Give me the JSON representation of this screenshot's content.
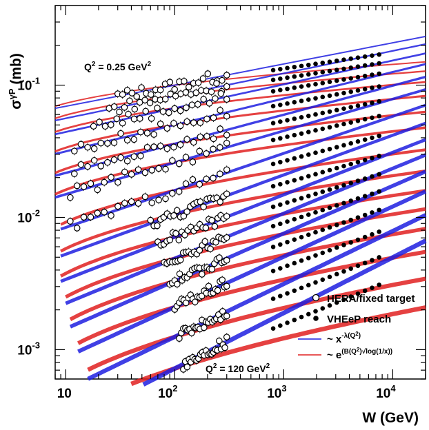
{
  "chart_data": {
    "type": "scatter",
    "xscale": "log",
    "yscale": "log",
    "xlim": [
      8,
      20000
    ],
    "ylim": [
      0.0006,
      0.4
    ],
    "xlabel": "W (GeV)",
    "ylabel": "σ^γP (mb)",
    "x_ticks": [
      "10",
      "10^2",
      "10^3",
      "10^4"
    ],
    "y_ticks": [
      "10^-3",
      "10^-2",
      "10^-1"
    ],
    "annotations": {
      "top": "Q^2 = 0.25 GeV^2",
      "bottom": "Q^2 = 120 GeV^2"
    },
    "legend": {
      "position": "bottom-right",
      "entries": [
        {
          "label": "HERA/fixed target",
          "marker": "open-circle"
        },
        {
          "label": "VHEeP reach",
          "marker": "filled-circle"
        },
        {
          "label": "~ x^-λ(Q^2)",
          "color": "#1f1fe0",
          "style": "line"
        },
        {
          "label": "~ e^(B(Q^2)√log(1/x))",
          "color": "#e02020",
          "style": "line"
        }
      ]
    },
    "curve_colors": {
      "power_law": "#1f1fe0",
      "exponential": "#e02020"
    },
    "series": [
      {
        "w_start": 8,
        "sigma_at_100": 0.1,
        "slope": 0.16,
        "hera_w": [
          30,
          300
        ],
        "vheep_w": [
          800,
          7500
        ]
      },
      {
        "w_start": 8,
        "sigma_at_100": 0.083,
        "slope": 0.17,
        "hera_w": [
          25,
          300
        ],
        "vheep_w": [
          800,
          7500
        ]
      },
      {
        "w_start": 8,
        "sigma_at_100": 0.067,
        "slope": 0.18,
        "hera_w": [
          18,
          300
        ],
        "vheep_w": [
          800,
          7500
        ]
      },
      {
        "w_start": 8,
        "sigma_at_100": 0.05,
        "slope": 0.2,
        "hera_w": [
          12,
          300
        ],
        "vheep_w": [
          800,
          7500
        ]
      },
      {
        "w_start": 8,
        "sigma_at_100": 0.036,
        "slope": 0.22,
        "hera_w": [
          12,
          300
        ],
        "vheep_w": [
          800,
          7500
        ]
      },
      {
        "w_start": 8,
        "sigma_at_100": 0.026,
        "slope": 0.24,
        "hera_w": [
          11,
          300
        ],
        "vheep_w": [
          800,
          7500
        ]
      },
      {
        "w_start": 9,
        "sigma_at_100": 0.016,
        "slope": 0.28,
        "hera_w": [
          11,
          300
        ],
        "vheep_w": [
          800,
          7500
        ]
      },
      {
        "w_start": 9,
        "sigma_at_100": 0.0105,
        "slope": 0.3,
        "hera_w": [
          60,
          300
        ],
        "vheep_w": [
          800,
          7500
        ]
      },
      {
        "w_start": 9,
        "sigma_at_100": 0.0071,
        "slope": 0.32,
        "hera_w": [
          70,
          300
        ],
        "vheep_w": [
          800,
          7500
        ]
      },
      {
        "w_start": 10,
        "sigma_at_100": 0.0049,
        "slope": 0.34,
        "hera_w": [
          80,
          300
        ],
        "vheep_w": [
          800,
          7500
        ]
      },
      {
        "w_start": 11,
        "sigma_at_100": 0.0033,
        "slope": 0.36,
        "hera_w": [
          90,
          300
        ],
        "vheep_w": [
          800,
          7500
        ]
      },
      {
        "w_start": 13,
        "sigma_at_100": 0.0021,
        "slope": 0.38,
        "hera_w": [
          100,
          300
        ],
        "vheep_w": [
          800,
          7500
        ]
      },
      {
        "w_start": 16,
        "sigma_at_100": 0.00125,
        "slope": 0.4,
        "hera_w": [
          110,
          300
        ],
        "vheep_w": [
          800,
          7500
        ]
      },
      {
        "w_start": 22,
        "sigma_at_100": 0.00072,
        "slope": 0.42,
        "hera_w": [
          120,
          300
        ],
        "vheep_w": [
          800,
          7500
        ]
      }
    ]
  }
}
